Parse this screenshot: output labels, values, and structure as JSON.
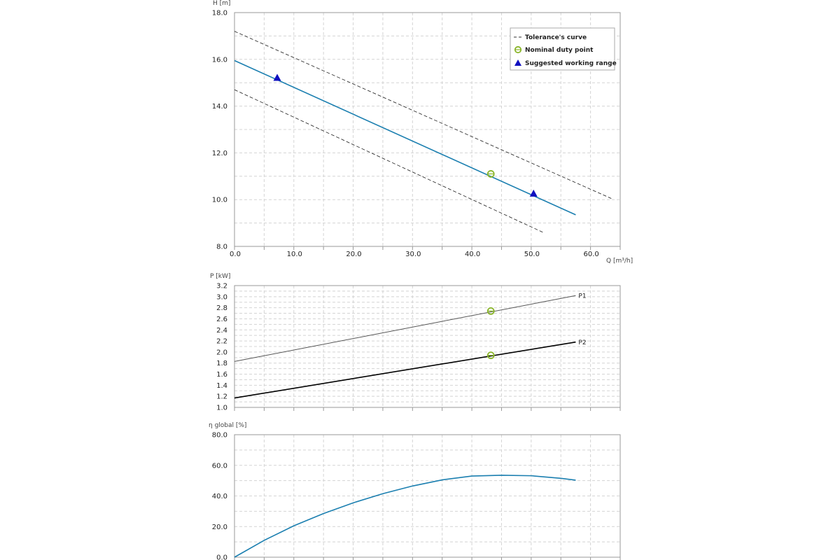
{
  "colors": {
    "curve": "#1b7fb0",
    "tolerance": "#333333",
    "duty_point": "#8ab52a",
    "range_marker": "#1010c0",
    "p1": "#555555",
    "p2": "#000000",
    "grid": "#d4d4d4",
    "frame": "#999999"
  },
  "legend": {
    "tolerance_label": "Tolerance's curve",
    "duty_label": "Nominal duty point",
    "range_label": "Suggested working range",
    "placement": "top-right"
  },
  "chart_data": [
    {
      "type": "line",
      "ylabel": "H [m]",
      "xlabel": "Q [m³/h]",
      "xlim": [
        0,
        65
      ],
      "ylim": [
        8,
        18
      ],
      "grid": true,
      "x_ticks": [
        "0.0",
        "10.0",
        "20.0",
        "30.0",
        "40.0",
        "50.0",
        "60.0"
      ],
      "y_ticks": [
        "8.0",
        "10.0",
        "12.0",
        "14.0",
        "16.0",
        "18.0"
      ],
      "series": [
        {
          "role": "curve",
          "x": [
            0,
            57.5
          ],
          "y": [
            15.95,
            9.35
          ]
        },
        {
          "role": "tolerance",
          "x": [
            0,
            63.5
          ],
          "y": [
            17.2,
            10.05
          ]
        },
        {
          "role": "tolerance",
          "x": [
            0,
            52
          ],
          "y": [
            14.7,
            8.6
          ]
        }
      ],
      "duty_point": {
        "x": 43.2,
        "y": 11.1
      },
      "working_range": [
        {
          "x": 7.2,
          "y": 15.2
        },
        {
          "x": 50.4,
          "y": 10.25
        }
      ]
    },
    {
      "type": "line",
      "ylabel": "P [kW]",
      "xlim": [
        0,
        65
      ],
      "ylim": [
        1.0,
        3.2
      ],
      "grid": true,
      "y_ticks": [
        "1.0",
        "1.2",
        "1.4",
        "1.6",
        "1.8",
        "2.0",
        "2.2",
        "2.4",
        "2.6",
        "2.8",
        "3.0",
        "3.2"
      ],
      "series": [
        {
          "name": "P1",
          "x": [
            0,
            57.5
          ],
          "y": [
            1.83,
            3.02
          ]
        },
        {
          "name": "P2",
          "x": [
            0,
            57.5
          ],
          "y": [
            1.17,
            2.18
          ]
        }
      ],
      "duty_points": [
        {
          "x": 43.2,
          "y": 2.74
        },
        {
          "x": 43.2,
          "y": 1.94
        }
      ]
    },
    {
      "type": "line",
      "ylabel": "η global [%]",
      "xlim": [
        0,
        65
      ],
      "ylim": [
        0,
        80
      ],
      "grid": true,
      "y_ticks": [
        "0.0",
        "20.0",
        "40.0",
        "60.0",
        "80.0"
      ],
      "series": [
        {
          "role": "efficiency",
          "x": [
            0,
            5,
            10,
            15,
            20,
            25,
            30,
            35,
            40,
            45,
            50,
            55,
            57.5
          ],
          "y": [
            0,
            11,
            20.5,
            28.5,
            35.5,
            41.5,
            46.5,
            50.5,
            53,
            53.5,
            53.2,
            51.5,
            50.3
          ]
        }
      ]
    }
  ]
}
